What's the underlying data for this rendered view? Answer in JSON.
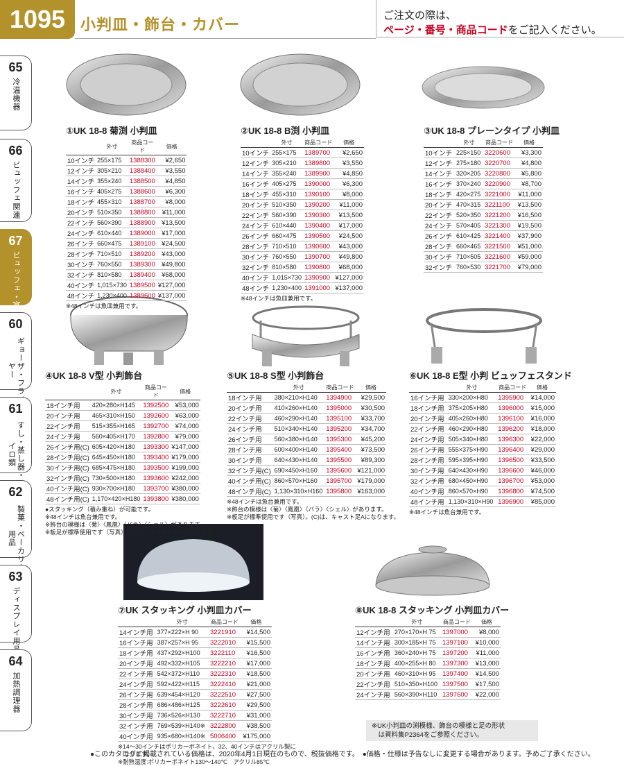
{
  "header": {
    "page": "1095",
    "title": "小判皿・飾台・カバー",
    "note1": "ご注文の際は、",
    "note2": "ページ・番号・商品コード",
    "note3": "をご記入ください。"
  },
  "side": [
    {
      "n": "65",
      "l": "冷温機器"
    },
    {
      "n": "66",
      "l": "ビュッフェ関連"
    },
    {
      "n": "67",
      "l": "ビュッフェ・宴会"
    },
    {
      "n": "60",
      "l": "ギョーザ・フライヤー"
    },
    {
      "n": "61",
      "l": "すし・蒸し器・セイロ類"
    },
    {
      "n": "62",
      "l": "製菓・ベーカリー用品"
    },
    {
      "n": "63",
      "l": "ディスプレイ用品"
    },
    {
      "n": "64",
      "l": "加熱調理器"
    }
  ],
  "hdrs": {
    "size": "外寸",
    "code": "商品コード",
    "price": "価格"
  },
  "b1": {
    "title": "①UK 18-8 菊渕 小判皿",
    "note": "※48インチは魚皿兼用です。",
    "rows": [
      [
        "10インチ",
        "255×175",
        "1388300",
        "¥2,650"
      ],
      [
        "12インチ",
        "305×210",
        "1388400",
        "¥3,550"
      ],
      [
        "14インチ",
        "355×240",
        "1388500",
        "¥4,850"
      ],
      [
        "16インチ",
        "405×275",
        "1388600",
        "¥6,300"
      ],
      [
        "18インチ",
        "455×310",
        "1388700",
        "¥8,000"
      ],
      [
        "20インチ",
        "510×350",
        "1388800",
        "¥11,000"
      ],
      [
        "22インチ",
        "560×390",
        "1388900",
        "¥13,500"
      ],
      [
        "24インチ",
        "610×440",
        "1389000",
        "¥17,000"
      ],
      [
        "26インチ",
        "660×475",
        "1389100",
        "¥24,500"
      ],
      [
        "28インチ",
        "710×510",
        "1389200",
        "¥43,000"
      ],
      [
        "30インチ",
        "760×550",
        "1389300",
        "¥49,800"
      ],
      [
        "32インチ",
        "810×580",
        "1389400",
        "¥68,000"
      ],
      [
        "40インチ",
        "1,015×730",
        "1389500",
        "¥127,000"
      ],
      [
        "48インチ",
        "1,230×400",
        "1389600",
        "¥137,000"
      ]
    ]
  },
  "b2": {
    "title": "②UK 18-8 B渕 小判皿",
    "note": "※48インチは魚皿兼用です。",
    "rows": [
      [
        "10インチ",
        "255×175",
        "1389700",
        "¥2,650"
      ],
      [
        "12インチ",
        "305×210",
        "1389800",
        "¥3,550"
      ],
      [
        "14インチ",
        "355×240",
        "1389900",
        "¥4,850"
      ],
      [
        "16インチ",
        "405×275",
        "1390000",
        "¥6,300"
      ],
      [
        "18インチ",
        "455×310",
        "1390100",
        "¥8,000"
      ],
      [
        "20インチ",
        "510×350",
        "1390200",
        "¥11,000"
      ],
      [
        "22インチ",
        "560×390",
        "1390300",
        "¥13,500"
      ],
      [
        "24インチ",
        "610×440",
        "1390400",
        "¥17,000"
      ],
      [
        "26インチ",
        "660×475",
        "1390500",
        "¥24,500"
      ],
      [
        "28インチ",
        "710×510",
        "1390600",
        "¥43,000"
      ],
      [
        "30インチ",
        "760×550",
        "1390700",
        "¥49,800"
      ],
      [
        "32インチ",
        "810×580",
        "1390800",
        "¥68,000"
      ],
      [
        "40インチ",
        "1,015×730",
        "1390900",
        "¥127,000"
      ],
      [
        "48インチ",
        "1,230×400",
        "1391000",
        "¥137,000"
      ]
    ]
  },
  "b3": {
    "title": "③UK 18-8 プレーンタイプ 小判皿",
    "rows": [
      [
        "10インチ",
        "225×150",
        "3220600",
        "¥3,300"
      ],
      [
        "12インチ",
        "275×180",
        "3220700",
        "¥4,800"
      ],
      [
        "14インチ",
        "320×205",
        "3220800",
        "¥5,800"
      ],
      [
        "16インチ",
        "370×240",
        "3220900",
        "¥8,700"
      ],
      [
        "18インチ",
        "420×275",
        "3221000",
        "¥11,000"
      ],
      [
        "20インチ",
        "470×315",
        "3221100",
        "¥13,500"
      ],
      [
        "22インチ",
        "520×350",
        "3221200",
        "¥16,500"
      ],
      [
        "24インチ",
        "570×405",
        "3221300",
        "¥19,500"
      ],
      [
        "26インチ",
        "610×425",
        "3221400",
        "¥37,900"
      ],
      [
        "28インチ",
        "660×465",
        "3221500",
        "¥51,000"
      ],
      [
        "30インチ",
        "710×505",
        "3221600",
        "¥59,000"
      ],
      [
        "32インチ",
        "760×530",
        "3221700",
        "¥79,000"
      ]
    ]
  },
  "b4": {
    "title": "④UK 18-8 V型 小判飾台",
    "notes": [
      "●スタッキング（積み重ね）が可能です。",
      "※48インチは魚台兼用です。",
      "※飾台の模様は〈菊〉〈鳳凰〉〈バラ〉〈シェル〉があります。",
      "※板足が標準使用です（写真）。(C)は、キャスト足Aになります。"
    ],
    "rows": [
      [
        "18インチ用",
        "420×280×H145",
        "1392500",
        "¥53,000"
      ],
      [
        "20インチ用",
        "465×310×H150",
        "1392600",
        "¥63,000"
      ],
      [
        "22インチ用",
        "515×355×H165",
        "1392700",
        "¥74,000"
      ],
      [
        "24インチ用",
        "560×405×H170",
        "1392800",
        "¥79,000"
      ],
      [
        "26インチ用(C)",
        "605×420×H180",
        "1393300",
        "¥147,000"
      ],
      [
        "28インチ用(C)",
        "645×450×H180",
        "1393400",
        "¥179,000"
      ],
      [
        "30インチ用(C)",
        "685×475×H180",
        "1393500",
        "¥199,000"
      ],
      [
        "32インチ用(C)",
        "730×500×H180",
        "1393600",
        "¥242,000"
      ],
      [
        "40インチ用(C)",
        "930×700×H180",
        "1393700",
        "¥380,000"
      ],
      [
        "48インチ用(C)",
        "1,170×420×H180",
        "1393800",
        "¥380,000"
      ]
    ]
  },
  "b5": {
    "title": "⑤UK 18-8 S型 小判飾台",
    "notes": [
      "※48インチは魚台兼用です。",
      "※飾台の模様は〈菊〉〈鳳凰〉〈バラ〉〈シェル〉があります。",
      "※板足が標準使用です（写真）。(C)は、キャスト足Aになります。"
    ],
    "rows": [
      [
        "18インチ用",
        "380×210×H140",
        "1394900",
        "¥29,500"
      ],
      [
        "20インチ用",
        "410×260×H140",
        "1395000",
        "¥30,500"
      ],
      [
        "22インチ用",
        "460×290×H140",
        "1395100",
        "¥33,700"
      ],
      [
        "24インチ用",
        "510×340×H140",
        "1395200",
        "¥34,700"
      ],
      [
        "26インチ用",
        "560×380×H140",
        "1395300",
        "¥45,200"
      ],
      [
        "28インチ用",
        "600×400×H140",
        "1395400",
        "¥73,500"
      ],
      [
        "30インチ用",
        "640×430×H140",
        "1395500",
        "¥89,300"
      ],
      [
        "32インチ用(C)",
        "690×450×H160",
        "1395600",
        "¥121,000"
      ],
      [
        "40インチ用(C)",
        "860×570×H160",
        "1395700",
        "¥179,000"
      ],
      [
        "48インチ用(C)",
        "1,130×310×H160",
        "1395800",
        "¥163,000"
      ]
    ]
  },
  "b6": {
    "title": "⑥UK 18-8 E型 小判 ビュッフェスタンド",
    "note": "※48インチは魚台兼用です。",
    "rows": [
      [
        "16インチ用",
        "330×200×H80",
        "1395900",
        "¥14,000"
      ],
      [
        "18インチ用",
        "375×205×H80",
        "1396000",
        "¥15,000"
      ],
      [
        "20インチ用",
        "405×260×H80",
        "1396100",
        "¥16,000"
      ],
      [
        "22インチ用",
        "460×290×H80",
        "1396200",
        "¥18,000"
      ],
      [
        "24インチ用",
        "505×340×H80",
        "1396300",
        "¥22,000"
      ],
      [
        "26インチ用",
        "555×375×H90",
        "1396400",
        "¥29,000"
      ],
      [
        "28インチ用",
        "595×395×H90",
        "1396500",
        "¥33,500"
      ],
      [
        "30インチ用",
        "640×430×H90",
        "1396600",
        "¥46,000"
      ],
      [
        "32インチ用",
        "680×450×H90",
        "1396700",
        "¥53,000"
      ],
      [
        "40インチ用",
        "860×570×H90",
        "1396800",
        "¥74,500"
      ],
      [
        "48インチ用",
        "1,130×310×H90",
        "1396900",
        "¥85,000"
      ]
    ]
  },
  "b7": {
    "title": "⑦UK スタッキング 小判皿カバー",
    "notes": [
      "※14～30インチはポリカーボネイト、32、40インチはアクリル製に",
      "　なります。",
      "※耐熱温度:ポリカーボネイト130～140℃　アクリル85℃"
    ],
    "rows": [
      [
        "14インチ用",
        "377×222×H 90",
        "3221910",
        "¥14,500"
      ],
      [
        "16インチ用",
        "387×257×H 95",
        "3222010",
        "¥15,500"
      ],
      [
        "18インチ用",
        "437×292×H100",
        "3222110",
        "¥16,500"
      ],
      [
        "20インチ用",
        "492×332×H105",
        "3222210",
        "¥17,000"
      ],
      [
        "22インチ用",
        "542×372×H110",
        "3222310",
        "¥18,500"
      ],
      [
        "24インチ用",
        "592×422×H115",
        "3222410",
        "¥21,000"
      ],
      [
        "26インチ用",
        "639×454×H120",
        "3222510",
        "¥27,500"
      ],
      [
        "28インチ用",
        "686×486×H125",
        "3222610",
        "¥29,500"
      ],
      [
        "30インチ用",
        "736×526×H130",
        "3222710",
        "¥31,000"
      ],
      [
        "32インチ用",
        "769×539×H140※",
        "3222800",
        "¥38,500"
      ],
      [
        "40インチ用",
        "935×680×H140※",
        "5006400",
        "¥175,000"
      ]
    ]
  },
  "b8": {
    "title": "⑧UK 18-8 スタッキング 小判皿カバー",
    "rows": [
      [
        "12インチ用",
        "270×170×H 75",
        "1397000",
        "¥8,000"
      ],
      [
        "14インチ用",
        "300×185×H 75",
        "1397100",
        "¥10,000"
      ],
      [
        "16インチ用",
        "360×240×H 75",
        "1397200",
        "¥11,000"
      ],
      [
        "18インチ用",
        "400×255×H 80",
        "1397300",
        "¥13,000"
      ],
      [
        "20インチ用",
        "460×310×H 95",
        "1397400",
        "¥14,500"
      ],
      [
        "22インチ用",
        "510×350×H100",
        "1397500",
        "¥17,500"
      ],
      [
        "24インチ用",
        "560×390×H110",
        "1397600",
        "¥22,000"
      ]
    ]
  },
  "boxnote": {
    "l1": "※UK小判皿の渕模様、飾台の模様と足の形状",
    "l2": "　は資料集P2364をご参照ください。"
  },
  "footer": "●このカタログに掲載されている価格は、2020年4月1日現在のもので、税抜価格です。　●価格・仕様は予告なしに変更する場合があります。予めご了承ください。"
}
